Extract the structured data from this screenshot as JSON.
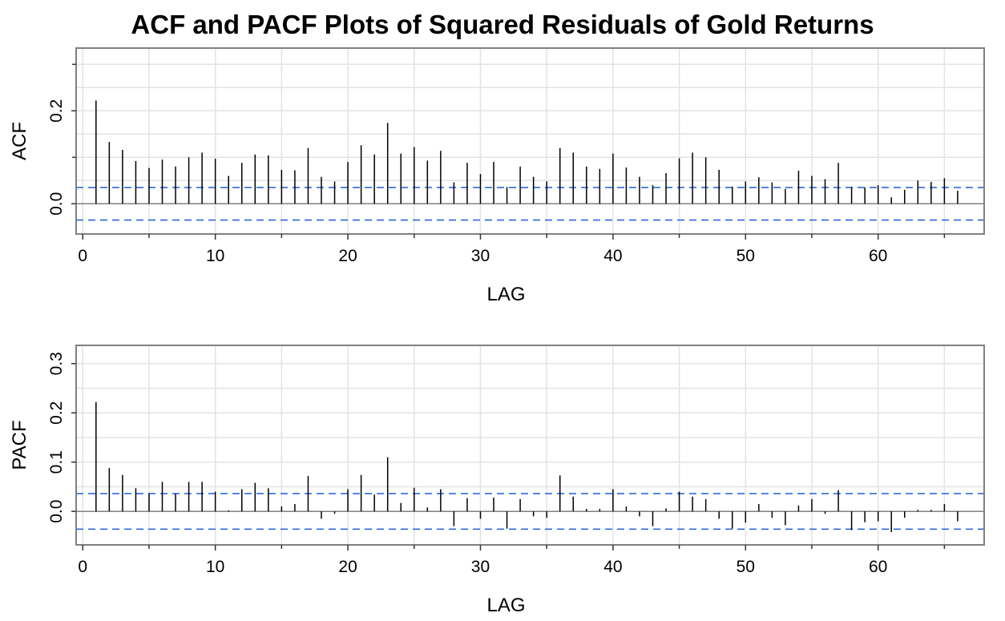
{
  "chart_data": [
    {
      "type": "bar",
      "title": "ACF and PACF Plots of Squared Residuals of Gold Returns",
      "xlabel": "LAG",
      "ylabel": "ACF",
      "xlim": [
        -0.5,
        68
      ],
      "ylim": [
        -0.065,
        0.335
      ],
      "x_ticks": [
        0,
        10,
        20,
        30,
        40,
        50,
        60
      ],
      "y_ticks": [
        0.0,
        0.2
      ],
      "y_tick_labels": [
        "0.0",
        "0.2"
      ],
      "y_minor_ticks": [
        0.1,
        0.3
      ],
      "significance_bound": 0.035,
      "grid": true,
      "colors": {
        "bars": "#000000",
        "bounds": "#1f5fd6",
        "zero_line": "#808080",
        "grid": "#e3e3e3",
        "frame": "#808080"
      },
      "lags": [
        1,
        2,
        3,
        4,
        5,
        6,
        7,
        8,
        9,
        10,
        11,
        12,
        13,
        14,
        15,
        16,
        17,
        18,
        19,
        20,
        21,
        22,
        23,
        24,
        25,
        26,
        27,
        28,
        29,
        30,
        31,
        32,
        33,
        34,
        35,
        36,
        37,
        38,
        39,
        40,
        41,
        42,
        43,
        44,
        45,
        46,
        47,
        48,
        49,
        50,
        51,
        52,
        53,
        54,
        55,
        56,
        57,
        58,
        59,
        60,
        61,
        62,
        63,
        64,
        65,
        66
      ],
      "values": [
        0.222,
        0.133,
        0.116,
        0.092,
        0.077,
        0.095,
        0.08,
        0.1,
        0.11,
        0.097,
        0.06,
        0.088,
        0.106,
        0.104,
        0.073,
        0.072,
        0.12,
        0.058,
        0.048,
        0.09,
        0.126,
        0.106,
        0.174,
        0.108,
        0.122,
        0.093,
        0.114,
        0.046,
        0.088,
        0.064,
        0.09,
        0.036,
        0.08,
        0.058,
        0.048,
        0.12,
        0.11,
        0.08,
        0.075,
        0.108,
        0.078,
        0.058,
        0.04,
        0.066,
        0.098,
        0.11,
        0.1,
        0.073,
        0.037,
        0.048,
        0.057,
        0.046,
        0.032,
        0.071,
        0.06,
        0.053,
        0.088,
        0.036,
        0.035,
        0.04,
        0.014,
        0.03,
        0.05,
        0.047,
        0.055,
        0.028
      ]
    },
    {
      "type": "bar",
      "xlabel": "LAG",
      "ylabel": "PACF",
      "xlim": [
        -0.5,
        68
      ],
      "ylim": [
        -0.068,
        0.337
      ],
      "x_ticks": [
        0,
        10,
        20,
        30,
        40,
        50,
        60
      ],
      "y_ticks": [
        0.0,
        0.1,
        0.2,
        0.3
      ],
      "y_tick_labels": [
        "0.0",
        "0.1",
        "0.2",
        "0.3"
      ],
      "significance_bound": 0.036,
      "grid": true,
      "colors": {
        "bars": "#000000",
        "bounds": "#1f5fd6",
        "zero_line": "#808080",
        "grid": "#e3e3e3",
        "frame": "#808080"
      },
      "lags": [
        1,
        2,
        3,
        4,
        5,
        6,
        7,
        8,
        9,
        10,
        11,
        12,
        13,
        14,
        15,
        16,
        17,
        18,
        19,
        20,
        21,
        22,
        23,
        24,
        25,
        26,
        27,
        28,
        29,
        30,
        31,
        32,
        33,
        34,
        35,
        36,
        37,
        38,
        39,
        40,
        41,
        42,
        43,
        44,
        45,
        46,
        47,
        48,
        49,
        50,
        51,
        52,
        53,
        54,
        55,
        56,
        57,
        58,
        59,
        60,
        61,
        62,
        63,
        64,
        65,
        66
      ],
      "values": [
        0.222,
        0.088,
        0.074,
        0.047,
        0.036,
        0.06,
        0.036,
        0.06,
        0.06,
        0.04,
        0.002,
        0.045,
        0.058,
        0.047,
        0.01,
        0.015,
        0.072,
        -0.015,
        -0.005,
        0.045,
        0.074,
        0.034,
        0.11,
        0.017,
        0.048,
        0.008,
        0.045,
        -0.03,
        0.027,
        -0.015,
        0.028,
        -0.035,
        0.025,
        -0.01,
        -0.013,
        0.073,
        0.03,
        0.005,
        0.005,
        0.045,
        0.01,
        -0.01,
        -0.03,
        0.006,
        0.04,
        0.03,
        0.025,
        -0.015,
        -0.035,
        -0.023,
        0.015,
        -0.013,
        -0.028,
        0.012,
        0.025,
        -0.005,
        0.043,
        -0.038,
        -0.022,
        -0.02,
        -0.042,
        -0.013,
        0.003,
        0.003,
        0.015,
        -0.02
      ]
    }
  ]
}
